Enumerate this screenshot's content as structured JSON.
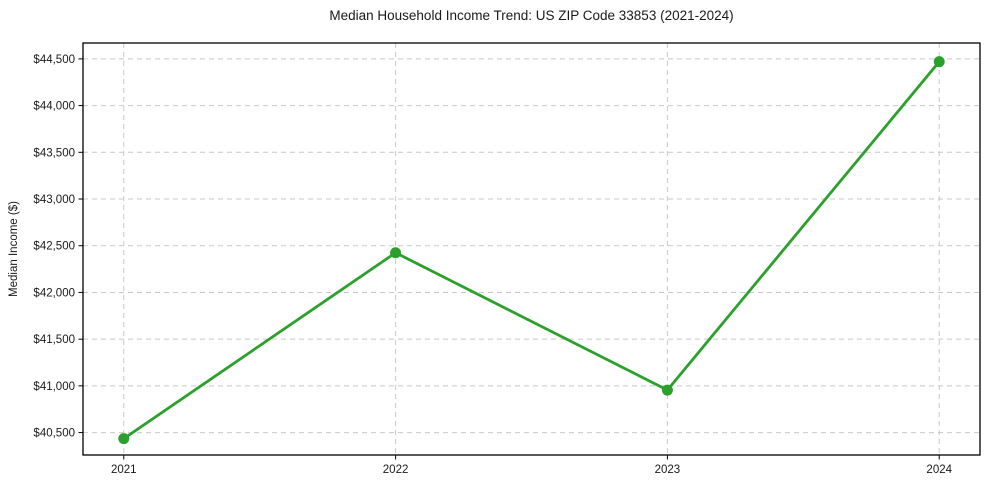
{
  "chart_data": {
    "type": "line",
    "title": "Median Household Income Trend: US ZIP Code 33853 (2021-2024)",
    "xlabel": "",
    "ylabel": "Median Income ($)",
    "x": [
      2021,
      2022,
      2023,
      2024
    ],
    "series": [
      {
        "name": "Median Household Income",
        "values": [
          40435,
          42425,
          40955,
          44470
        ],
        "color": "#2ca02c"
      }
    ],
    "xticks": [
      2021,
      2022,
      2023,
      2024
    ],
    "yticks": [
      40500,
      41000,
      41500,
      42000,
      42500,
      43000,
      43500,
      44000,
      44500
    ],
    "ytick_labels": [
      "$40,500",
      "$41,000",
      "$41,500",
      "$42,000",
      "$42,500",
      "$43,000",
      "$43,500",
      "$44,000",
      "$44,500"
    ],
    "xlim": [
      2020.85,
      2024.15
    ],
    "ylim": [
      40260,
      44670
    ],
    "grid": true,
    "grid_style": "dashed",
    "legend": false,
    "marker": "circle",
    "colors": {
      "line": "#2ca02c",
      "grid": "#c9c9c9",
      "text": "#1a1a1a",
      "frame": "#000000",
      "background": "#ffffff"
    }
  }
}
